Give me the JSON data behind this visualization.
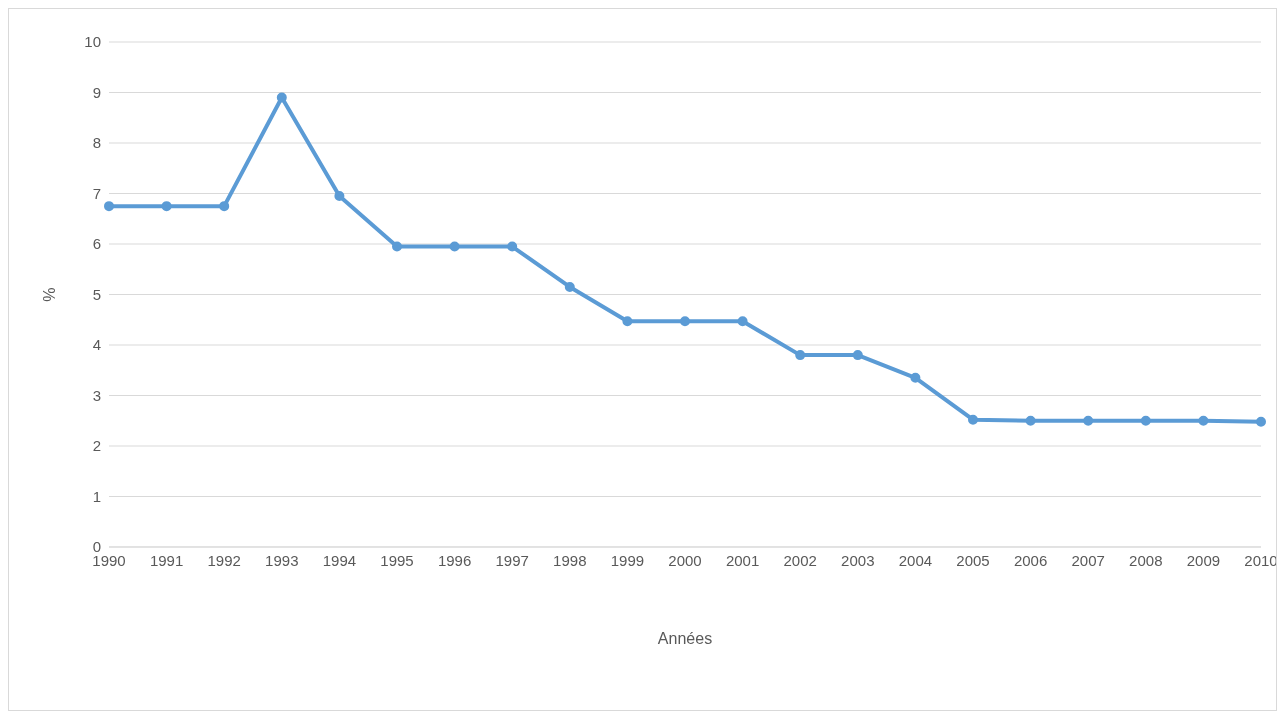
{
  "chart_data": {
    "type": "line",
    "xlabel": "Années",
    "ylabel": "%",
    "categories": [
      "1990",
      "1991",
      "1992",
      "1993",
      "1994",
      "1995",
      "1996",
      "1997",
      "1998",
      "1999",
      "2000",
      "2001",
      "2002",
      "2003",
      "2004",
      "2005",
      "2006",
      "2007",
      "2008",
      "2009",
      "2010"
    ],
    "series": [
      {
        "color": "#5b9bd5",
        "values": [
          6.75,
          6.75,
          6.75,
          8.9,
          6.95,
          5.95,
          5.95,
          5.95,
          5.15,
          4.47,
          4.47,
          4.47,
          3.8,
          3.8,
          3.35,
          2.52,
          2.5,
          2.5,
          2.5,
          2.5,
          2.48
        ]
      }
    ],
    "ylim": [
      0,
      10
    ],
    "yticks": [
      0,
      1,
      2,
      3,
      4,
      5,
      6,
      7,
      8,
      9,
      10
    ],
    "grid": "y",
    "legend": false,
    "marker": "circle",
    "line_style": "solid"
  }
}
